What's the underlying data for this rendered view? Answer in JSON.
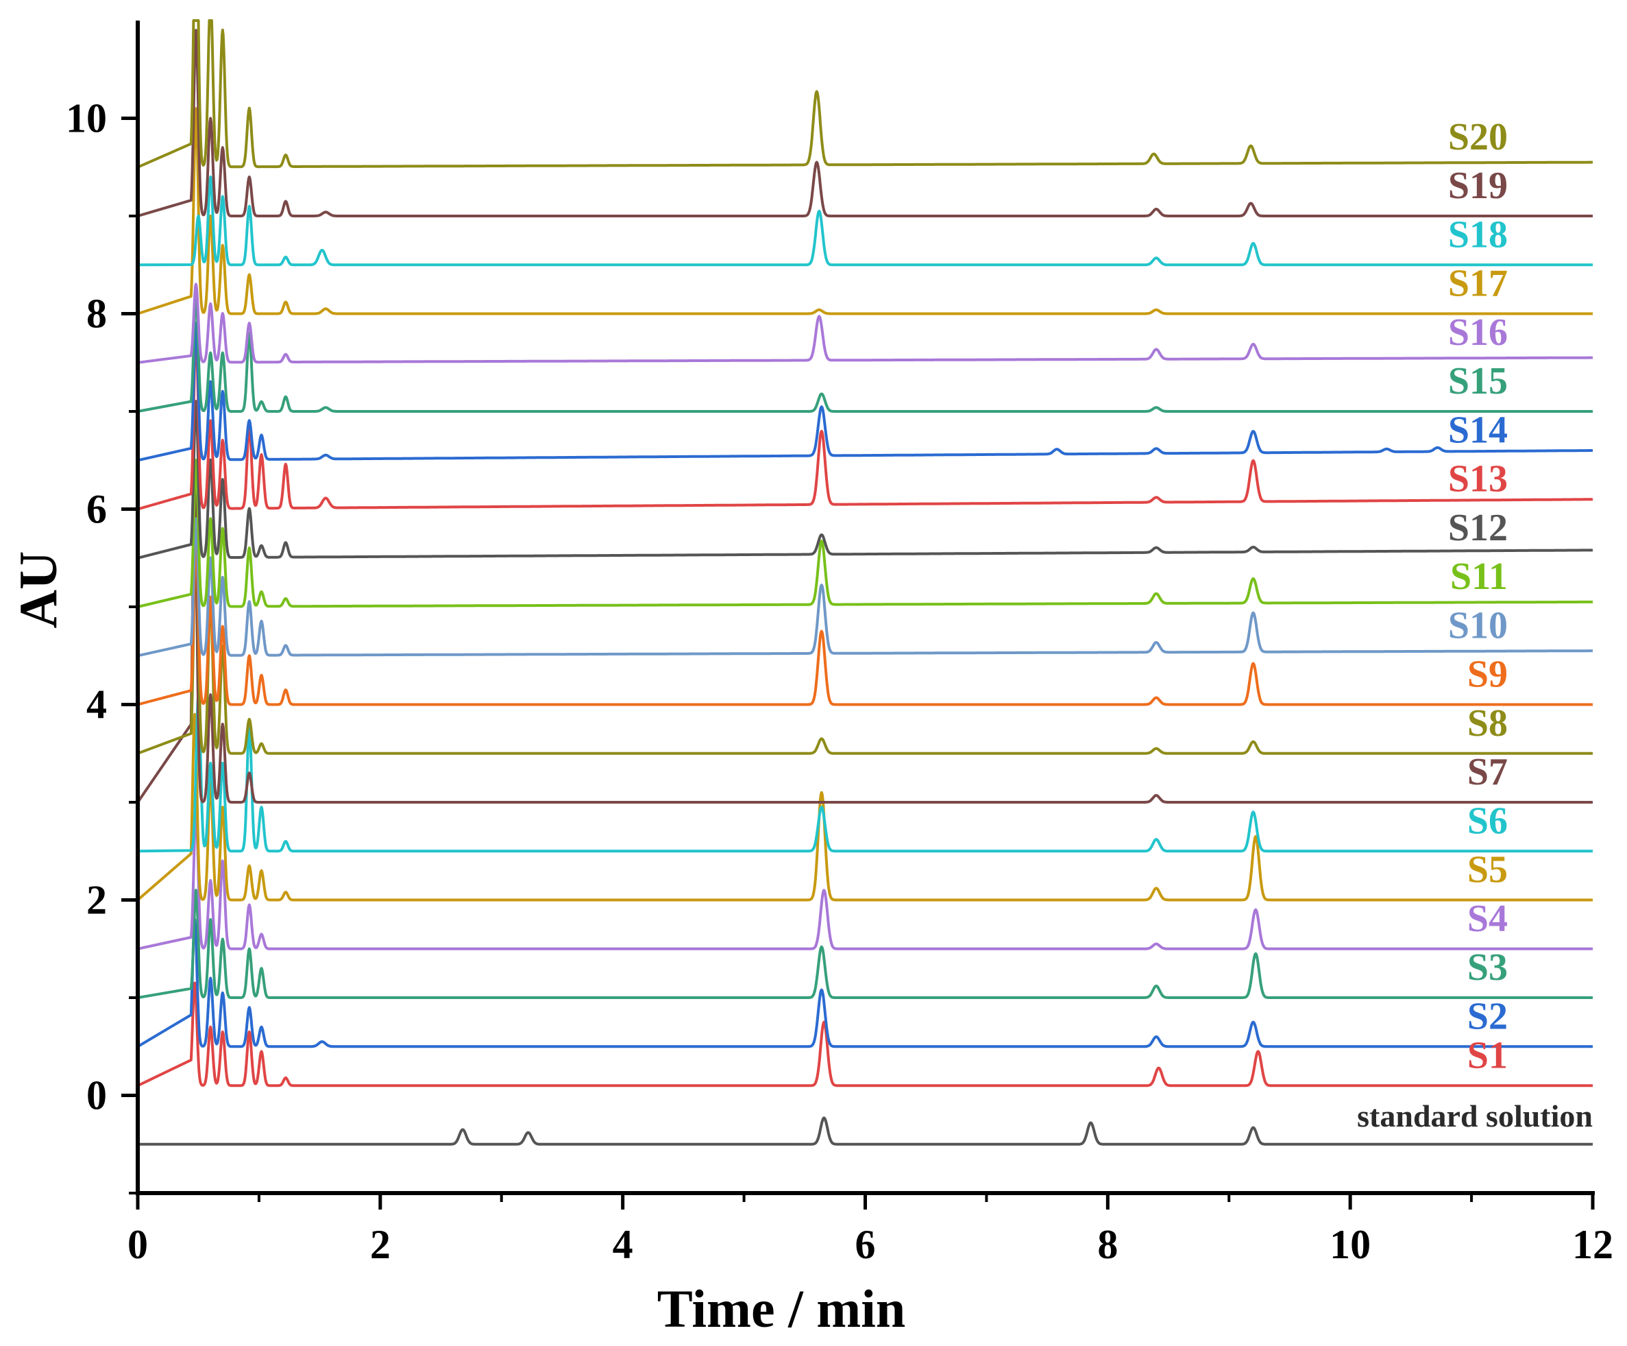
{
  "chart_data": {
    "type": "line",
    "title": "",
    "xlabel": "Time / min",
    "ylabel": "AU",
    "xlim": [
      0,
      12
    ],
    "ylim": [
      -1,
      11
    ],
    "x_ticks": [
      0,
      2,
      4,
      6,
      8,
      10,
      12
    ],
    "x_tick_labels": [
      "0",
      "2",
      "4",
      "6",
      "8",
      "10",
      "12"
    ],
    "y_ticks": [
      0,
      2,
      4,
      6,
      8,
      10
    ],
    "y_tick_labels": [
      "0",
      "2",
      "4",
      "6",
      "8",
      "10"
    ],
    "grid": false,
    "legend": "inline labels at right end of each trace",
    "series": [
      {
        "name": "standard solution",
        "color": "#555555",
        "baseline": -0.5,
        "drift": 0.0,
        "peaks": [
          [
            2.68,
            0.15
          ],
          [
            3.22,
            0.12
          ],
          [
            5.66,
            0.27
          ],
          [
            7.86,
            0.22
          ],
          [
            9.2,
            0.17
          ]
        ]
      },
      {
        "name": "S1",
        "color": "#e04545",
        "baseline": 0.1,
        "drift": 0.0,
        "peaks": [
          [
            0.47,
            1.05
          ],
          [
            0.6,
            0.6
          ],
          [
            0.7,
            0.55
          ],
          [
            0.92,
            0.55
          ],
          [
            1.02,
            0.35
          ],
          [
            1.22,
            0.08
          ],
          [
            5.66,
            0.65
          ],
          [
            8.42,
            0.18
          ],
          [
            9.24,
            0.35
          ]
        ]
      },
      {
        "name": "S2",
        "color": "#2b6bd1",
        "baseline": 0.5,
        "drift": 0.0,
        "peaks": [
          [
            0.47,
            1.3
          ],
          [
            0.6,
            0.7
          ],
          [
            0.7,
            0.55
          ],
          [
            0.92,
            0.4
          ],
          [
            1.02,
            0.2
          ],
          [
            1.52,
            0.05
          ],
          [
            5.64,
            0.58
          ],
          [
            8.4,
            0.1
          ],
          [
            9.2,
            0.25
          ]
        ]
      },
      {
        "name": "S3",
        "color": "#36a07a",
        "baseline": 1.0,
        "drift": 0.0,
        "peaks": [
          [
            0.48,
            1.1
          ],
          [
            0.6,
            0.8
          ],
          [
            0.7,
            0.6
          ],
          [
            0.92,
            0.5
          ],
          [
            1.02,
            0.3
          ],
          [
            5.64,
            0.52
          ],
          [
            8.4,
            0.12
          ],
          [
            9.22,
            0.45
          ]
        ]
      },
      {
        "name": "S4",
        "color": "#a878d8",
        "baseline": 1.5,
        "drift": 0.0,
        "peaks": [
          [
            0.48,
            1.4
          ],
          [
            0.6,
            0.7
          ],
          [
            0.7,
            0.9
          ],
          [
            0.92,
            0.45
          ],
          [
            1.02,
            0.15
          ],
          [
            5.66,
            0.6
          ],
          [
            8.4,
            0.05
          ],
          [
            9.22,
            0.4
          ]
        ]
      },
      {
        "name": "S5",
        "color": "#c89a10",
        "baseline": 2.0,
        "drift": 0.0,
        "peaks": [
          [
            0.47,
            1.9
          ],
          [
            0.6,
            1.2
          ],
          [
            0.7,
            0.95
          ],
          [
            0.92,
            0.35
          ],
          [
            1.02,
            0.3
          ],
          [
            1.22,
            0.08
          ],
          [
            5.64,
            1.1
          ],
          [
            8.4,
            0.12
          ],
          [
            9.22,
            0.65
          ]
        ]
      },
      {
        "name": "S6",
        "color": "#22c4cc",
        "baseline": 2.5,
        "drift": 0.0,
        "peaks": [
          [
            0.5,
            1.6
          ],
          [
            0.6,
            0.9
          ],
          [
            0.7,
            0.9
          ],
          [
            0.92,
            1.3
          ],
          [
            1.02,
            0.45
          ],
          [
            1.22,
            0.1
          ],
          [
            5.64,
            0.45
          ],
          [
            8.4,
            0.12
          ],
          [
            9.2,
            0.4
          ]
        ]
      },
      {
        "name": "S7",
        "color": "#7a4848",
        "baseline": 3.0,
        "drift": 0.0,
        "peaks": [
          [
            0.47,
            3.2
          ],
          [
            0.6,
            1.1
          ],
          [
            0.7,
            0.8
          ],
          [
            0.92,
            0.3
          ],
          [
            8.4,
            0.07
          ]
        ]
      },
      {
        "name": "S8",
        "color": "#8e8c18",
        "baseline": 3.5,
        "drift": 0.0,
        "peaks": [
          [
            0.48,
            2.4
          ],
          [
            0.6,
            1.6
          ],
          [
            0.7,
            1.1
          ],
          [
            0.92,
            0.35
          ],
          [
            1.02,
            0.1
          ],
          [
            5.64,
            0.15
          ],
          [
            8.4,
            0.05
          ],
          [
            9.2,
            0.12
          ]
        ]
      },
      {
        "name": "S9",
        "color": "#ee6d1c",
        "baseline": 4.0,
        "drift": 0.0,
        "peaks": [
          [
            0.48,
            1.7
          ],
          [
            0.6,
            1.1
          ],
          [
            0.7,
            0.8
          ],
          [
            0.92,
            0.5
          ],
          [
            1.02,
            0.3
          ],
          [
            1.22,
            0.15
          ],
          [
            5.64,
            0.75
          ],
          [
            8.4,
            0.07
          ],
          [
            9.2,
            0.42
          ]
        ]
      },
      {
        "name": "S10",
        "color": "#6f98c8",
        "baseline": 4.5,
        "drift": 0.05,
        "peaks": [
          [
            0.48,
            1.4
          ],
          [
            0.6,
            1.0
          ],
          [
            0.7,
            0.8
          ],
          [
            0.92,
            0.55
          ],
          [
            1.02,
            0.35
          ],
          [
            1.22,
            0.1
          ],
          [
            5.64,
            0.7
          ],
          [
            8.4,
            0.1
          ],
          [
            9.2,
            0.4
          ]
        ]
      },
      {
        "name": "S11",
        "color": "#78c01a",
        "baseline": 5.0,
        "drift": 0.05,
        "peaks": [
          [
            0.48,
            1.5
          ],
          [
            0.6,
            0.9
          ],
          [
            0.7,
            0.8
          ],
          [
            0.92,
            0.6
          ],
          [
            1.02,
            0.15
          ],
          [
            1.22,
            0.08
          ],
          [
            5.64,
            0.65
          ],
          [
            8.4,
            0.1
          ],
          [
            9.2,
            0.25
          ]
        ]
      },
      {
        "name": "S12",
        "color": "#555555",
        "baseline": 5.5,
        "drift": 0.08,
        "peaks": [
          [
            0.48,
            1.6
          ],
          [
            0.6,
            1.0
          ],
          [
            0.7,
            0.8
          ],
          [
            0.92,
            0.5
          ],
          [
            1.02,
            0.12
          ],
          [
            1.22,
            0.15
          ],
          [
            5.64,
            0.2
          ],
          [
            8.4,
            0.05
          ],
          [
            9.2,
            0.05
          ]
        ]
      },
      {
        "name": "S13",
        "color": "#e04545",
        "baseline": 6.0,
        "drift": 0.1,
        "peaks": [
          [
            0.48,
            1.8
          ],
          [
            0.6,
            0.9
          ],
          [
            0.7,
            0.7
          ],
          [
            0.92,
            0.85
          ],
          [
            1.02,
            0.55
          ],
          [
            1.22,
            0.45
          ],
          [
            1.55,
            0.1
          ],
          [
            5.64,
            0.75
          ],
          [
            8.4,
            0.05
          ],
          [
            9.2,
            0.42
          ]
        ]
      },
      {
        "name": "S14",
        "color": "#2b6bd1",
        "baseline": 6.5,
        "drift": 0.1,
        "peaks": [
          [
            0.48,
            1.4
          ],
          [
            0.6,
            0.8
          ],
          [
            0.7,
            0.7
          ],
          [
            0.92,
            0.4
          ],
          [
            1.02,
            0.25
          ],
          [
            1.55,
            0.04
          ],
          [
            5.64,
            0.5
          ],
          [
            7.58,
            0.05
          ],
          [
            8.4,
            0.05
          ],
          [
            9.2,
            0.22
          ],
          [
            10.3,
            0.03
          ],
          [
            10.72,
            0.04
          ]
        ]
      },
      {
        "name": "S15",
        "color": "#36a07a",
        "baseline": 7.0,
        "drift": 0.0,
        "peaks": [
          [
            0.48,
            1.2
          ],
          [
            0.6,
            0.6
          ],
          [
            0.7,
            0.6
          ],
          [
            0.92,
            0.8
          ],
          [
            1.02,
            0.1
          ],
          [
            1.22,
            0.15
          ],
          [
            1.55,
            0.04
          ],
          [
            5.64,
            0.18
          ],
          [
            8.4,
            0.04
          ]
        ]
      },
      {
        "name": "S16",
        "color": "#a878d8",
        "baseline": 7.5,
        "drift": 0.05,
        "peaks": [
          [
            0.48,
            0.8
          ],
          [
            0.6,
            0.6
          ],
          [
            0.7,
            0.5
          ],
          [
            0.92,
            0.4
          ],
          [
            1.22,
            0.08
          ],
          [
            5.62,
            0.45
          ],
          [
            8.4,
            0.1
          ],
          [
            9.2,
            0.15
          ]
        ]
      },
      {
        "name": "S17",
        "color": "#c89a10",
        "baseline": 8.0,
        "drift": 0.0,
        "peaks": [
          [
            0.48,
            2.1
          ],
          [
            0.6,
            1.0
          ],
          [
            0.7,
            0.7
          ],
          [
            0.92,
            0.4
          ],
          [
            1.22,
            0.12
          ],
          [
            1.55,
            0.05
          ],
          [
            5.62,
            0.04
          ],
          [
            8.4,
            0.04
          ]
        ]
      },
      {
        "name": "S18",
        "color": "#22c4cc",
        "baseline": 8.5,
        "drift": 0.0,
        "peaks": [
          [
            0.5,
            0.5
          ],
          [
            0.6,
            0.9
          ],
          [
            0.7,
            0.7
          ],
          [
            0.92,
            0.6
          ],
          [
            1.22,
            0.08
          ],
          [
            1.52,
            0.15
          ],
          [
            5.62,
            0.55
          ],
          [
            8.4,
            0.07
          ],
          [
            9.2,
            0.22
          ]
        ]
      },
      {
        "name": "S19",
        "color": "#7a4848",
        "baseline": 9.0,
        "drift": 0.0,
        "peaks": [
          [
            0.48,
            1.9
          ],
          [
            0.6,
            1.0
          ],
          [
            0.7,
            0.7
          ],
          [
            0.92,
            0.4
          ],
          [
            1.22,
            0.15
          ],
          [
            1.55,
            0.04
          ],
          [
            5.6,
            0.55
          ],
          [
            8.4,
            0.07
          ],
          [
            9.18,
            0.13
          ]
        ]
      },
      {
        "name": "S20",
        "color": "#8e8c18",
        "baseline": 9.5,
        "drift": 0.05,
        "peaks": [
          [
            0.48,
            2.8
          ],
          [
            0.6,
            1.8
          ],
          [
            0.7,
            1.4
          ],
          [
            0.92,
            0.6
          ],
          [
            1.22,
            0.12
          ],
          [
            5.6,
            0.75
          ],
          [
            8.38,
            0.1
          ],
          [
            9.18,
            0.18
          ]
        ]
      }
    ]
  }
}
